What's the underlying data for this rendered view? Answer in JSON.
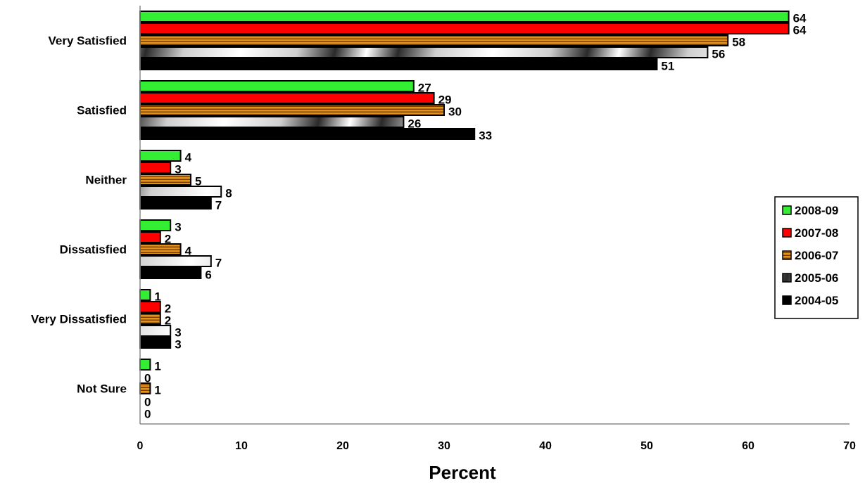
{
  "chart_data": {
    "type": "bar",
    "orientation": "horizontal",
    "categories": [
      "Very Satisfied",
      "Satisfied",
      "Neither",
      "Dissatisfied",
      "Very Dissatisfied",
      "Not Sure"
    ],
    "series": [
      {
        "name": "2008-09",
        "values": [
          64,
          27,
          4,
          3,
          1,
          1
        ],
        "color": "#33ee33",
        "pattern": "solid"
      },
      {
        "name": "2007-08",
        "values": [
          64,
          29,
          3,
          2,
          2,
          0
        ],
        "color": "#ff0000",
        "pattern": "solid"
      },
      {
        "name": "2006-07",
        "values": [
          58,
          30,
          5,
          4,
          2,
          1
        ],
        "color": "#d98a1a",
        "pattern": "horizontal-stripes"
      },
      {
        "name": "2005-06",
        "values": [
          56,
          26,
          8,
          7,
          3,
          0
        ],
        "color": "#cccccc",
        "pattern": "diagonal-gradient"
      },
      {
        "name": "2004-05",
        "values": [
          51,
          33,
          7,
          6,
          3,
          0
        ],
        "color": "#000000",
        "pattern": "solid"
      }
    ],
    "xlabel": "Percent",
    "ylabel": "",
    "xlim": [
      0,
      70
    ],
    "xticks": [
      0,
      10,
      20,
      30,
      40,
      50,
      60,
      70
    ],
    "grid": false,
    "legend_position": "right"
  }
}
